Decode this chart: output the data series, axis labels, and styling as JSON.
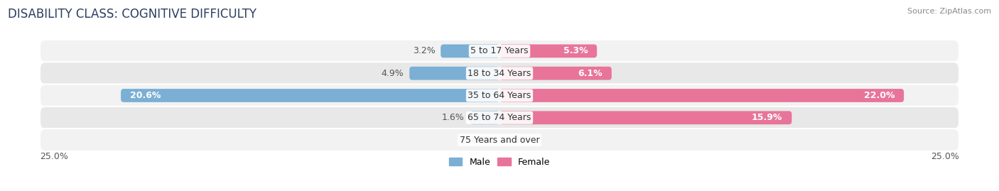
{
  "title": "DISABILITY CLASS: COGNITIVE DIFFICULTY",
  "source": "Source: ZipAtlas.com",
  "categories": [
    "5 to 17 Years",
    "18 to 34 Years",
    "35 to 64 Years",
    "65 to 74 Years",
    "75 Years and over"
  ],
  "male_values": [
    3.2,
    4.9,
    20.6,
    1.6,
    0.0
  ],
  "female_values": [
    5.3,
    6.1,
    22.0,
    15.9,
    0.0
  ],
  "male_color": "#7bafd4",
  "female_color": "#e8749a",
  "male_color_light": "#aecde8",
  "female_color_light": "#f0a8be",
  "row_bg_colors": [
    "#f2f2f2",
    "#e8e8e8"
  ],
  "max_value": 25.0,
  "label_color_inside": "#ffffff",
  "label_color_outside": "#555555",
  "bar_height": 0.6,
  "title_fontsize": 12,
  "source_fontsize": 8,
  "label_fontsize": 9,
  "category_fontsize": 9,
  "axis_label_fontsize": 9,
  "inside_threshold_male": 5.0,
  "inside_threshold_female": 5.0
}
